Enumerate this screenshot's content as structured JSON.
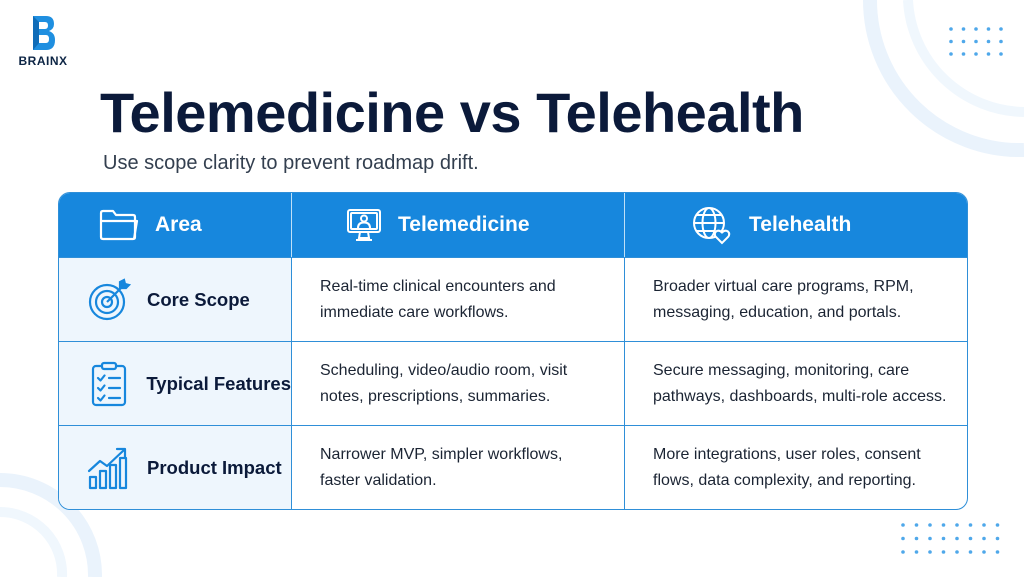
{
  "brand": {
    "name": "BRAINX"
  },
  "title": "Telemedicine vs Telehealth",
  "subtitle": "Use scope clarity to prevent roadmap drift.",
  "table": {
    "headers": [
      {
        "label": "Area",
        "icon": "folder-icon"
      },
      {
        "label": "Telemedicine",
        "icon": "monitor-doctor-icon"
      },
      {
        "label": "Telehealth",
        "icon": "globe-heart-icon"
      }
    ],
    "rows": [
      {
        "label": "Core Scope",
        "icon": "target-icon",
        "telemedicine": [
          "Real-time clinical encounters and",
          "immediate care workflows."
        ],
        "telehealth": [
          "Broader virtual care programs, RPM,",
          "messaging, education, and portals."
        ]
      },
      {
        "label": "Typical Features",
        "icon": "checklist-icon",
        "telemedicine": [
          "Scheduling, video/audio room, visit",
          "notes, prescriptions, summaries."
        ],
        "telehealth": [
          "Secure messaging, monitoring, care",
          "pathways, dashboards, multi-role access."
        ]
      },
      {
        "label": "Product Impact",
        "icon": "growth-chart-icon",
        "telemedicine": [
          "Narrower MVP, simpler workflows,",
          "faster validation."
        ],
        "telehealth": [
          "More integrations, user roles, consent",
          "flows, data complexity, and reporting."
        ]
      }
    ]
  },
  "colors": {
    "accent": "#1787dd",
    "title": "#0b1a3a",
    "rowLabelBg": "#eef6fd",
    "border": "#2f8fd8"
  }
}
